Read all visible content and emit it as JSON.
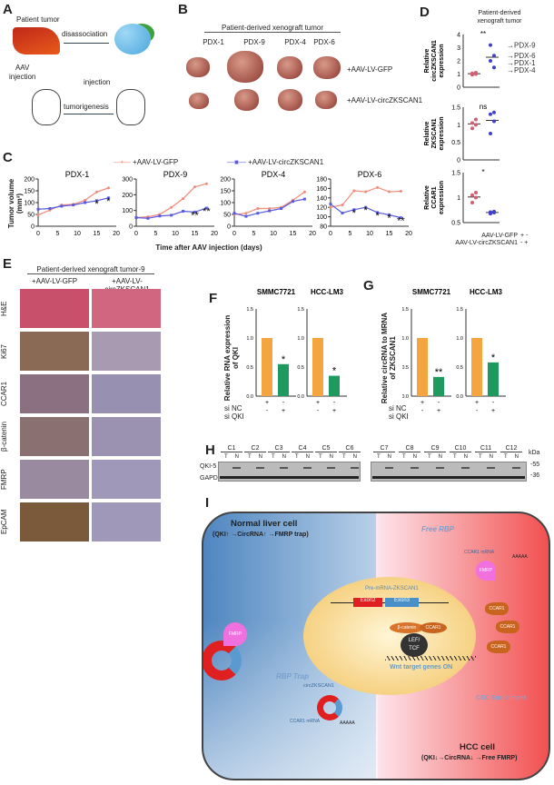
{
  "panels": {
    "A": "A",
    "B": "B",
    "C": "C",
    "D": "D",
    "E": "E",
    "F": "F",
    "G": "G",
    "H": "H",
    "I": "I"
  },
  "A": {
    "patient_tumor": "Patient tumor",
    "disassociation": "disassociation",
    "aav": "AAV",
    "injection_left": "injection",
    "injection": "injection",
    "tumorigenesis": "tumorigenesis"
  },
  "B": {
    "header": "Patient-derived xenograft tumor",
    "columns": [
      "PDX-1",
      "PDX-9",
      "PDX-4",
      "PDX-6"
    ],
    "row_gfp": "+AAV-LV-GFP",
    "row_circ": "+AAV-LV-circZKSCAN1"
  },
  "C": {
    "legend_gfp": "+AAV-LV-GFP",
    "legend_circ": "+AAV-LV-circZKSCAN1",
    "ylabel": "Tumor volume (mm³)",
    "xlabel": "Time after AAV injection (days)",
    "colors": {
      "gfp": "#f08a7a",
      "circ": "#5a5ae0"
    }
  },
  "D": {
    "header1": "Patient-derived",
    "header2": "xenograft tumor",
    "legend_gfp": "AAV-LV-GFP",
    "legend_circ": "AAV-LV-circZKSCAN1",
    "gfp_signs": "+ -",
    "circ_signs": "- +"
  },
  "E": {
    "header": "Patient-derived xenograft tumor-9",
    "col_gfp": "+AAV-LV-GFP",
    "col_circ": "+AAV-LV-circZKSCAN1",
    "rows": [
      "H&E",
      "Ki67",
      "CCAR1",
      "β-catenin",
      "FMRP",
      "EpCAM"
    ]
  },
  "F": {
    "ylabel1": "Relative RNA expression",
    "ylabel2": "of QKI",
    "cells": [
      "SMMC7721",
      "HCC-LM3"
    ],
    "si_nc": "si NC",
    "si_qki": "si QKI"
  },
  "G": {
    "ylabel1": "Relative circRNA to MRNA",
    "ylabel2": "of ZKSCAN1",
    "cells": [
      "SMMC7721",
      "HCC-LM3"
    ],
    "si_nc": "si NC",
    "si_qki": "si QKI"
  },
  "H": {
    "groups": [
      "C1",
      "C2",
      "C3",
      "C4",
      "C5",
      "C6",
      "C7",
      "C8",
      "C9",
      "C10",
      "C11",
      "C12"
    ],
    "t": "T",
    "n": "N",
    "rows": [
      "QKI-5",
      "GAPDH"
    ],
    "kda": "kDa",
    "markers": [
      "55",
      "36"
    ]
  },
  "I": {
    "normal_title": "Normal liver cell",
    "normal_sub": "(QKI↑ →CircRNA↑ →FMRP trap)",
    "hcc_title": "HCC cell",
    "hcc_sub": "(QKI↓→CircRNA↓ →Free FMRP)",
    "free_rbp": "Free RBP",
    "rbp_trap": "RBP Trap",
    "pre_mrna": "Pre-mRNA-ZKSCAN1",
    "exon2": "Exon2",
    "exon3": "Exon3",
    "bcat": "β-catenin",
    "ccar1": "CCAR1",
    "lef": "LEF/",
    "tcf": "TCF",
    "wnt": "Wnt target genes ON",
    "csc": "CSC Enrichment",
    "circ": "circZKSCAN1",
    "ccar1_mrna": "CCAR1 mRNA",
    "polyA": "AAAAA",
    "fmrp": "FMRP"
  },
  "chart_data": [
    {
      "type": "line",
      "title": "PDX-1",
      "x": [
        0,
        3,
        6,
        9,
        12,
        15,
        18
      ],
      "xticks": [
        0,
        5,
        10,
        15,
        20
      ],
      "ylim": [
        0,
        200
      ],
      "yticks": [
        0,
        50,
        100,
        150,
        200
      ],
      "series": [
        {
          "name": "+AAV-LV-GFP",
          "values": [
            48,
            68,
            90,
            93,
            110,
            145,
            162
          ]
        },
        {
          "name": "+AAV-LV-circZKSCAN1",
          "values": [
            72,
            75,
            85,
            90,
            100,
            108,
            120
          ]
        }
      ],
      "annotations": [
        {
          "x": 15,
          "text": "*"
        },
        {
          "x": 18,
          "text": "*"
        }
      ]
    },
    {
      "type": "line",
      "title": "PDX-9",
      "x": [
        0,
        3,
        6,
        9,
        12,
        15,
        18
      ],
      "xticks": [
        0,
        5,
        10,
        15,
        20
      ],
      "ylim": [
        0,
        300
      ],
      "yticks": [
        0,
        100,
        200,
        300
      ],
      "series": [
        {
          "name": "+AAV-LV-GFP",
          "values": [
            55,
            60,
            75,
            120,
            175,
            250,
            270
          ]
        },
        {
          "name": "+AAV-LV-circZKSCAN1",
          "values": [
            55,
            50,
            65,
            70,
            95,
            90,
            115
          ]
        }
      ],
      "annotations": [
        {
          "x": 15,
          "text": "**"
        },
        {
          "x": 18,
          "text": "**"
        }
      ]
    },
    {
      "type": "line",
      "title": "PDX-4",
      "x": [
        0,
        3,
        6,
        9,
        12,
        15,
        18
      ],
      "xticks": [
        0,
        5,
        10,
        15,
        20
      ],
      "ylim": [
        0,
        200
      ],
      "yticks": [
        0,
        50,
        100,
        150,
        200
      ],
      "series": [
        {
          "name": "+AAV-LV-GFP",
          "values": [
            50,
            55,
            75,
            75,
            80,
            110,
            145
          ]
        },
        {
          "name": "+AAV-LV-circZKSCAN1",
          "values": [
            55,
            42,
            55,
            65,
            75,
            105,
            115
          ]
        }
      ],
      "annotations": []
    },
    {
      "type": "line",
      "title": "PDX-6",
      "x": [
        0,
        3,
        6,
        9,
        12,
        15,
        18
      ],
      "xticks": [
        0,
        5,
        10,
        15,
        20
      ],
      "ylim": [
        80,
        180
      ],
      "yticks": [
        80,
        100,
        120,
        140,
        160,
        180
      ],
      "series": [
        {
          "name": "+AAV-LV-GFP",
          "values": [
            120,
            125,
            155,
            153,
            162,
            153,
            154
          ]
        },
        {
          "name": "+AAV-LV-circZKSCAN1",
          "values": [
            127,
            108,
            115,
            120,
            109,
            104,
            98
          ]
        }
      ],
      "annotations": [
        {
          "x": 6,
          "text": "*"
        },
        {
          "x": 9,
          "text": "*"
        },
        {
          "x": 12,
          "text": "*"
        },
        {
          "x": 15,
          "text": "*"
        },
        {
          "x": 18,
          "text": "**"
        }
      ]
    },
    {
      "type": "scatter",
      "ylabel": "Relative circZKSCAN1 expression",
      "ylim": [
        0,
        4
      ],
      "yticks": [
        0,
        1,
        2,
        3,
        4
      ],
      "groups": [
        {
          "name": "GFP",
          "values": [
            0.95,
            1.0,
            1.05,
            1.1
          ]
        },
        {
          "name": "circ",
          "values": [
            3.2,
            2.4,
            2.0,
            1.5
          ]
        }
      ],
      "sig": "**",
      "point_labels": [
        "PDX-9",
        "PDX-6",
        "PDX-1",
        "PDX-4"
      ]
    },
    {
      "type": "scatter",
      "ylabel": "Relative ZKSCAN1 expression",
      "ylim": [
        0,
        1.5
      ],
      "yticks": [
        0.0,
        0.5,
        1.0,
        1.5
      ],
      "groups": [
        {
          "name": "GFP",
          "values": [
            0.9,
            1.0,
            1.05,
            1.15
          ]
        },
        {
          "name": "circ",
          "values": [
            0.75,
            1.1,
            1.3,
            1.35
          ]
        }
      ],
      "sig": "ns"
    },
    {
      "type": "scatter",
      "ylabel": "Relative CCAR1 expression",
      "ylim": [
        0.5,
        1.5
      ],
      "yticks": [
        0.5,
        1.0,
        1.5
      ],
      "groups": [
        {
          "name": "GFP",
          "values": [
            0.9,
            1.0,
            1.05,
            1.1
          ]
        },
        {
          "name": "circ",
          "values": [
            0.68,
            0.7,
            0.71,
            0.72
          ]
        }
      ],
      "sig": "*"
    },
    {
      "type": "bar",
      "panel": "F",
      "title": "SMMC7721",
      "categories": [
        "si NC",
        "si QKI"
      ],
      "values": [
        1.0,
        0.55
      ],
      "ylim": [
        0,
        1.5
      ],
      "yticks": [
        0.0,
        0.5,
        1.0,
        1.5
      ],
      "sig": "*"
    },
    {
      "type": "bar",
      "panel": "F",
      "title": "HCC-LM3",
      "categories": [
        "si NC",
        "si QKI"
      ],
      "values": [
        1.0,
        0.35
      ],
      "ylim": [
        0,
        1.5
      ],
      "yticks": [
        0.0,
        0.5,
        1.0,
        1.5
      ],
      "sig": "*"
    },
    {
      "type": "bar",
      "panel": "G",
      "title": "SMMC7721",
      "categories": [
        "si NC",
        "si QKI"
      ],
      "values": [
        1.0,
        0.33
      ],
      "ylim": [
        0,
        1.5
      ],
      "yticks": [
        0.0,
        0.5,
        1.0,
        1.5
      ],
      "sig": "**"
    },
    {
      "type": "bar",
      "panel": "G",
      "title": "HCC-LM3",
      "categories": [
        "si NC",
        "si QKI"
      ],
      "values": [
        1.0,
        0.58
      ],
      "ylim": [
        0,
        1.5
      ],
      "yticks": [
        0.0,
        0.5,
        1.0,
        1.5
      ],
      "sig": "*"
    }
  ]
}
